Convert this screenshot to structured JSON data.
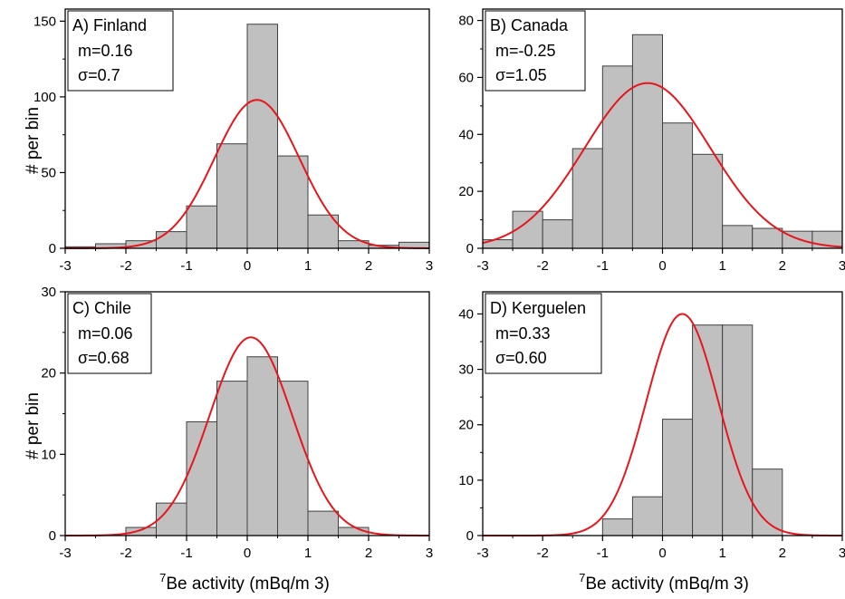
{
  "figure": {
    "xlabel": "Be activity (mBq/m 3)",
    "xlabel_superscript": "7",
    "ylabel": "# per bin"
  },
  "colors": {
    "bar_fill": "#c0c0c0",
    "bar_stroke": "#404040",
    "fit_curve": "#e8161b",
    "axis": "#000000"
  },
  "chart_data": [
    {
      "type": "bar",
      "panel_label": "A) Finland",
      "stats": [
        "m=0.16",
        "σ=0.7"
      ],
      "bin_edges": [
        -3,
        -2.5,
        -2,
        -1.5,
        -1,
        -0.5,
        0,
        0.5,
        1,
        1.5,
        2,
        2.5,
        3
      ],
      "values": [
        1,
        3,
        5,
        11,
        28,
        69,
        148,
        61,
        22,
        5,
        2,
        4
      ],
      "fit": {
        "name": "Gaussian",
        "mean": 0.16,
        "sigma": 0.7,
        "peak": 98
      },
      "xlim": [
        -3,
        3
      ],
      "ylim": [
        0,
        158
      ],
      "xticks": [
        -3,
        -2,
        -1,
        0,
        1,
        2,
        3
      ],
      "yticks": [
        0,
        50,
        100,
        150
      ],
      "xlabel": "",
      "ylabel": "# per bin"
    },
    {
      "type": "bar",
      "panel_label": "B) Canada",
      "stats": [
        "m=-0.25",
        "σ=1.05"
      ],
      "bin_edges": [
        -3,
        -2.5,
        -2,
        -1.5,
        -1,
        -0.5,
        0,
        0.5,
        1,
        1.5,
        2,
        2.5,
        3
      ],
      "values": [
        3,
        13,
        10,
        35,
        64,
        75,
        44,
        33,
        8,
        7,
        6,
        6
      ],
      "fit": {
        "name": "Gaussian",
        "mean": -0.25,
        "sigma": 1.05,
        "peak": 58
      },
      "xlim": [
        -3,
        3
      ],
      "ylim": [
        0,
        84
      ],
      "xticks": [
        -3,
        -2,
        -1,
        0,
        1,
        2,
        3
      ],
      "yticks": [
        0,
        20,
        40,
        60,
        80
      ],
      "xlabel": "",
      "ylabel": ""
    },
    {
      "type": "bar",
      "panel_label": "C) Chile",
      "stats": [
        "m=0.06",
        "σ=0.68"
      ],
      "bin_edges": [
        -3,
        -2.5,
        -2,
        -1.5,
        -1,
        -0.5,
        0,
        0.5,
        1,
        1.5,
        2,
        2.5,
        3
      ],
      "values": [
        0,
        0,
        1,
        4,
        14,
        19,
        22,
        19,
        3,
        1,
        0,
        0
      ],
      "fit": {
        "name": "Gaussian",
        "mean": 0.06,
        "sigma": 0.68,
        "peak": 24.4
      },
      "xlim": [
        -3,
        3
      ],
      "ylim": [
        0,
        30
      ],
      "xticks": [
        -3,
        -2,
        -1,
        0,
        1,
        2,
        3
      ],
      "yticks": [
        0,
        10,
        20,
        30
      ],
      "xlabel": "Be activity (mBq/m 3)",
      "ylabel": "# per bin"
    },
    {
      "type": "bar",
      "panel_label": "D) Kerguelen",
      "stats": [
        "m=0.33",
        "σ=0.60"
      ],
      "bin_edges": [
        -3,
        -2.5,
        -2,
        -1.5,
        -1,
        -0.5,
        0,
        0.5,
        1,
        1.5,
        2,
        2.5,
        3
      ],
      "values": [
        0,
        0,
        0,
        0,
        3,
        7,
        21,
        38,
        38,
        12,
        0,
        0
      ],
      "fit": {
        "name": "Gaussian",
        "mean": 0.33,
        "sigma": 0.6,
        "peak": 40
      },
      "xlim": [
        -3,
        3
      ],
      "ylim": [
        0,
        44
      ],
      "xticks": [
        -3,
        -2,
        -1,
        0,
        1,
        2,
        3
      ],
      "yticks": [
        0,
        10,
        20,
        30,
        40
      ],
      "xlabel": "Be activity (mBq/m 3)",
      "ylabel": ""
    }
  ]
}
